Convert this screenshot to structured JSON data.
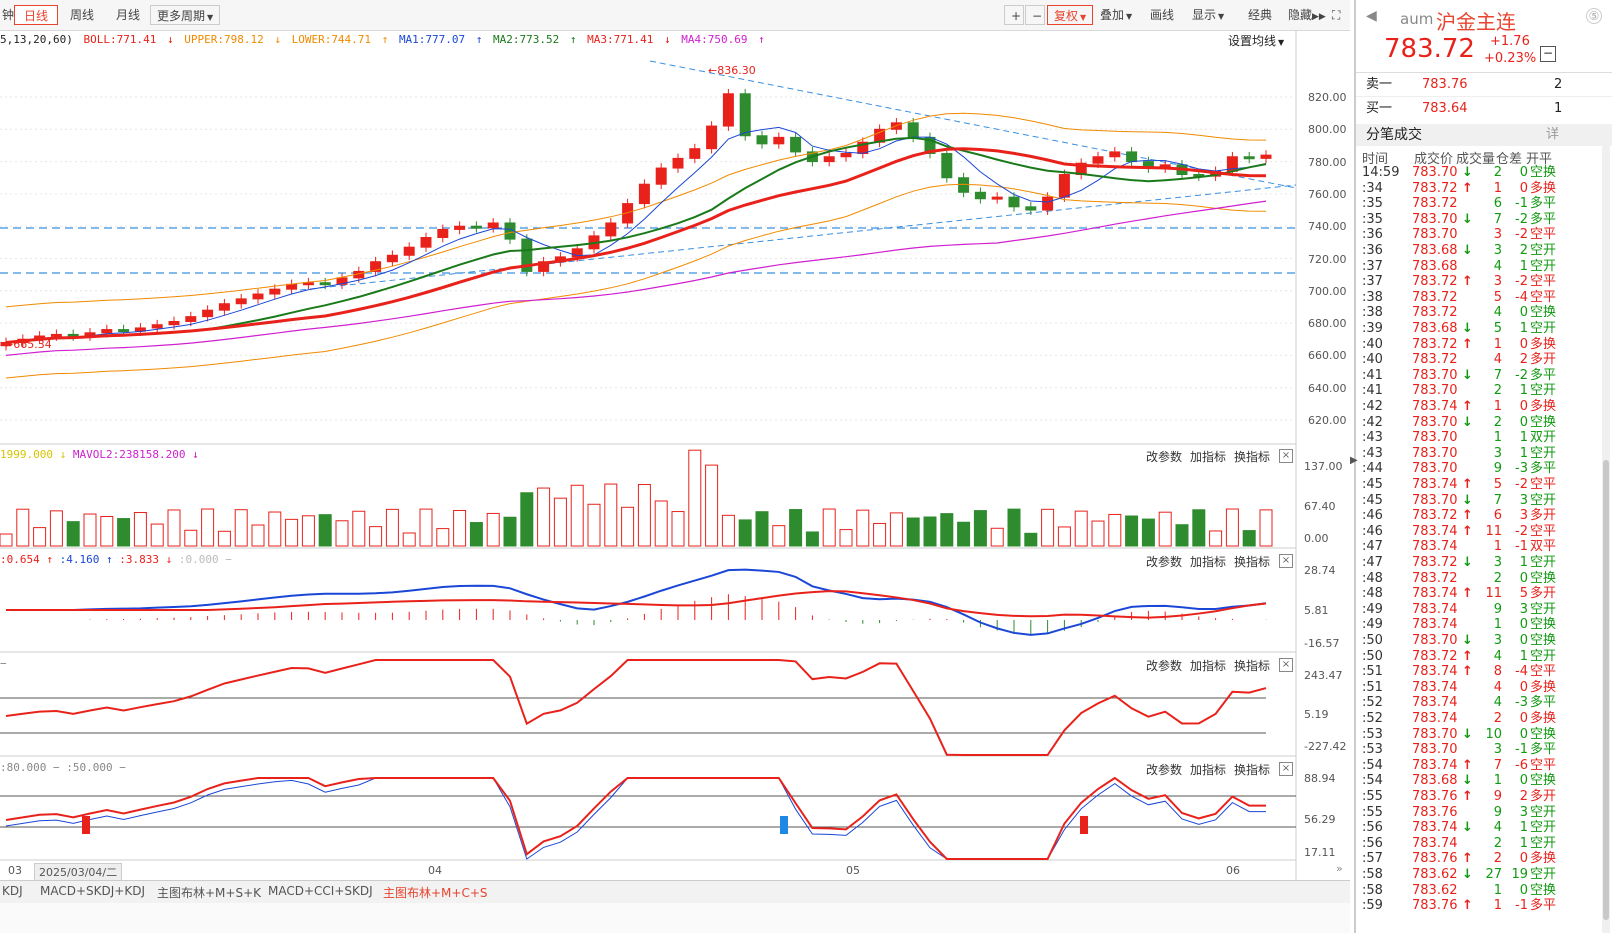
{
  "toolbar": {
    "left_partial": "钟",
    "tabs": [
      "日线",
      "周线",
      "月线"
    ],
    "more_period": "更多周期",
    "zoom_in": "+",
    "zoom_out": "−",
    "fuquan": "复权",
    "overlay": "叠加",
    "draw": "画线",
    "display": "显示",
    "classic": "经典",
    "hide": "隐藏",
    "fullscreen": "⛶"
  },
  "legend": {
    "params": "5,13,20,60)",
    "boll": "BOLL:771.41",
    "upper": "UPPER:798.12",
    "lower": "LOWER:744.71",
    "ma1": "MA1:777.07",
    "ma2": "MA2:773.52",
    "ma3": "MA3:771.41",
    "ma4": "MA4:750.69",
    "settings": "设置均线"
  },
  "annotations": {
    "high": "836.30",
    "low": "665.34"
  },
  "price_axis": [
    "820.00",
    "800.00",
    "780.00",
    "760.00",
    "740.00",
    "720.00",
    "700.00",
    "680.00",
    "660.00",
    "640.00",
    "620.00"
  ],
  "vol_panel": {
    "title_a": "1999.000",
    "title_b": "MAVOL2:238158.200",
    "axis": [
      "137.00",
      "67.40",
      "0.00"
    ]
  },
  "macd_panel": {
    "title_a": ":0.654",
    "title_b": ":4.160",
    "title_c": ":3.833",
    "title_d": ":0.000",
    "axis": [
      "28.74",
      "5.81",
      "-16.57"
    ]
  },
  "cci_panel": {
    "axis": [
      "243.47",
      "5.19",
      "-227.42"
    ]
  },
  "kdj_panel": {
    "title_a": ":80.000",
    "title_b": ":50.000",
    "axis": [
      "88.94",
      "56.29",
      "17.11"
    ]
  },
  "panel_buttons": {
    "modify": "改参数",
    "add": "加指标",
    "switch": "换指标",
    "close": "×"
  },
  "date_axis": {
    "d03": "03",
    "cursor_date": "2025/03/04/二",
    "d04": "04",
    "d05": "05",
    "d06": "06"
  },
  "bottom_tabs": [
    "KDJ",
    "MACD+SKDJ+KDJ",
    "主图布林+M+S+K",
    "MACD+CCI+SKDJ",
    "主图布林+M+C+S"
  ],
  "bottom_tabs_active": 4,
  "quote": {
    "code": "aum",
    "name": "沪金主连",
    "price": "783.72",
    "change": "+1.76",
    "change_pct": "+0.23%"
  },
  "orderbook": {
    "sell_label": "卖一",
    "sell_price": "783.76",
    "sell_vol": "2",
    "buy_label": "买一",
    "buy_price": "783.64",
    "buy_vol": "1"
  },
  "ticks_title": "分笔成交",
  "ticks_detail": "详",
  "ticks_columns": [
    "时间",
    "成交价",
    "成交量",
    "仓差",
    "开平"
  ],
  "ticks": [
    {
      "t": "14:59",
      "p": "783.70",
      "a": "↓",
      "v": "2",
      "d": "0",
      "k": "空换",
      "c": "g"
    },
    {
      "t": ":34",
      "p": "783.72",
      "a": "↑",
      "v": "1",
      "d": "0",
      "k": "多换",
      "c": "r"
    },
    {
      "t": ":35",
      "p": "783.72",
      "a": "",
      "v": "6",
      "d": "-1",
      "k": "多平",
      "c": "g"
    },
    {
      "t": ":35",
      "p": "783.70",
      "a": "↓",
      "v": "7",
      "d": "-2",
      "k": "多平",
      "c": "g"
    },
    {
      "t": ":36",
      "p": "783.70",
      "a": "",
      "v": "3",
      "d": "-2",
      "k": "空平",
      "c": "r"
    },
    {
      "t": ":36",
      "p": "783.68",
      "a": "↓",
      "v": "3",
      "d": "2",
      "k": "空开",
      "c": "g"
    },
    {
      "t": ":37",
      "p": "783.68",
      "a": "",
      "v": "4",
      "d": "1",
      "k": "空开",
      "c": "g"
    },
    {
      "t": ":37",
      "p": "783.72",
      "a": "↑",
      "v": "3",
      "d": "-2",
      "k": "空平",
      "c": "r"
    },
    {
      "t": ":38",
      "p": "783.72",
      "a": "",
      "v": "5",
      "d": "-4",
      "k": "空平",
      "c": "r"
    },
    {
      "t": ":38",
      "p": "783.72",
      "a": "",
      "v": "4",
      "d": "0",
      "k": "空换",
      "c": "g"
    },
    {
      "t": ":39",
      "p": "783.68",
      "a": "↓",
      "v": "5",
      "d": "1",
      "k": "空开",
      "c": "g"
    },
    {
      "t": ":40",
      "p": "783.72",
      "a": "↑",
      "v": "1",
      "d": "0",
      "k": "多换",
      "c": "r"
    },
    {
      "t": ":40",
      "p": "783.72",
      "a": "",
      "v": "4",
      "d": "2",
      "k": "多开",
      "c": "r"
    },
    {
      "t": ":41",
      "p": "783.70",
      "a": "↓",
      "v": "7",
      "d": "-2",
      "k": "多平",
      "c": "g"
    },
    {
      "t": ":41",
      "p": "783.70",
      "a": "",
      "v": "2",
      "d": "1",
      "k": "空开",
      "c": "g"
    },
    {
      "t": ":42",
      "p": "783.74",
      "a": "↑",
      "v": "1",
      "d": "0",
      "k": "多换",
      "c": "r"
    },
    {
      "t": ":42",
      "p": "783.70",
      "a": "↓",
      "v": "2",
      "d": "0",
      "k": "空换",
      "c": "g"
    },
    {
      "t": ":43",
      "p": "783.70",
      "a": "",
      "v": "1",
      "d": "1",
      "k": "双开",
      "c": "g"
    },
    {
      "t": ":43",
      "p": "783.70",
      "a": "",
      "v": "3",
      "d": "1",
      "k": "空开",
      "c": "g"
    },
    {
      "t": ":44",
      "p": "783.70",
      "a": "",
      "v": "9",
      "d": "-3",
      "k": "多平",
      "c": "g"
    },
    {
      "t": ":45",
      "p": "783.74",
      "a": "↑",
      "v": "5",
      "d": "-2",
      "k": "空平",
      "c": "r"
    },
    {
      "t": ":45",
      "p": "783.70",
      "a": "↓",
      "v": "7",
      "d": "3",
      "k": "空开",
      "c": "g"
    },
    {
      "t": ":46",
      "p": "783.72",
      "a": "↑",
      "v": "6",
      "d": "3",
      "k": "多开",
      "c": "r"
    },
    {
      "t": ":46",
      "p": "783.74",
      "a": "↑",
      "v": "11",
      "d": "-2",
      "k": "空平",
      "c": "r"
    },
    {
      "t": ":47",
      "p": "783.74",
      "a": "",
      "v": "1",
      "d": "-1",
      "k": "双平",
      "c": "r"
    },
    {
      "t": ":47",
      "p": "783.72",
      "a": "↓",
      "v": "3",
      "d": "1",
      "k": "空开",
      "c": "g"
    },
    {
      "t": ":48",
      "p": "783.72",
      "a": "",
      "v": "2",
      "d": "0",
      "k": "空换",
      "c": "g"
    },
    {
      "t": ":48",
      "p": "783.74",
      "a": "↑",
      "v": "11",
      "d": "5",
      "k": "多开",
      "c": "r"
    },
    {
      "t": ":49",
      "p": "783.74",
      "a": "",
      "v": "9",
      "d": "3",
      "k": "空开",
      "c": "g"
    },
    {
      "t": ":49",
      "p": "783.74",
      "a": "",
      "v": "1",
      "d": "0",
      "k": "空换",
      "c": "g"
    },
    {
      "t": ":50",
      "p": "783.70",
      "a": "↓",
      "v": "3",
      "d": "0",
      "k": "空换",
      "c": "g"
    },
    {
      "t": ":50",
      "p": "783.72",
      "a": "↑",
      "v": "4",
      "d": "1",
      "k": "空开",
      "c": "g"
    },
    {
      "t": ":51",
      "p": "783.74",
      "a": "↑",
      "v": "8",
      "d": "-4",
      "k": "空平",
      "c": "r"
    },
    {
      "t": ":51",
      "p": "783.74",
      "a": "",
      "v": "4",
      "d": "0",
      "k": "多换",
      "c": "r"
    },
    {
      "t": ":52",
      "p": "783.74",
      "a": "",
      "v": "4",
      "d": "-3",
      "k": "多平",
      "c": "g"
    },
    {
      "t": ":52",
      "p": "783.74",
      "a": "",
      "v": "2",
      "d": "0",
      "k": "多换",
      "c": "r"
    },
    {
      "t": ":53",
      "p": "783.70",
      "a": "↓",
      "v": "10",
      "d": "0",
      "k": "空换",
      "c": "g"
    },
    {
      "t": ":53",
      "p": "783.70",
      "a": "",
      "v": "3",
      "d": "-1",
      "k": "多平",
      "c": "g"
    },
    {
      "t": ":54",
      "p": "783.74",
      "a": "↑",
      "v": "7",
      "d": "-6",
      "k": "空平",
      "c": "r"
    },
    {
      "t": ":54",
      "p": "783.68",
      "a": "↓",
      "v": "1",
      "d": "0",
      "k": "空换",
      "c": "g"
    },
    {
      "t": ":55",
      "p": "783.76",
      "a": "↑",
      "v": "9",
      "d": "2",
      "k": "多开",
      "c": "r"
    },
    {
      "t": ":55",
      "p": "783.76",
      "a": "",
      "v": "9",
      "d": "3",
      "k": "空开",
      "c": "g"
    },
    {
      "t": ":56",
      "p": "783.74",
      "a": "↓",
      "v": "4",
      "d": "1",
      "k": "空开",
      "c": "g"
    },
    {
      "t": ":56",
      "p": "783.74",
      "a": "",
      "v": "2",
      "d": "1",
      "k": "空开",
      "c": "g"
    },
    {
      "t": ":57",
      "p": "783.76",
      "a": "↑",
      "v": "2",
      "d": "0",
      "k": "多换",
      "c": "r"
    },
    {
      "t": ":58",
      "p": "783.62",
      "a": "↓",
      "v": "27",
      "d": "19",
      "k": "空开",
      "c": "g"
    },
    {
      "t": ":58",
      "p": "783.62",
      "a": "",
      "v": "1",
      "d": "0",
      "k": "空换",
      "c": "g"
    },
    {
      "t": ":59",
      "p": "783.76",
      "a": "↑",
      "v": "1",
      "d": "-1",
      "k": "多平",
      "c": "r"
    }
  ],
  "colors": {
    "up": "#e8221b",
    "down": "#2e8b2e",
    "accent": "#e8442e"
  }
}
